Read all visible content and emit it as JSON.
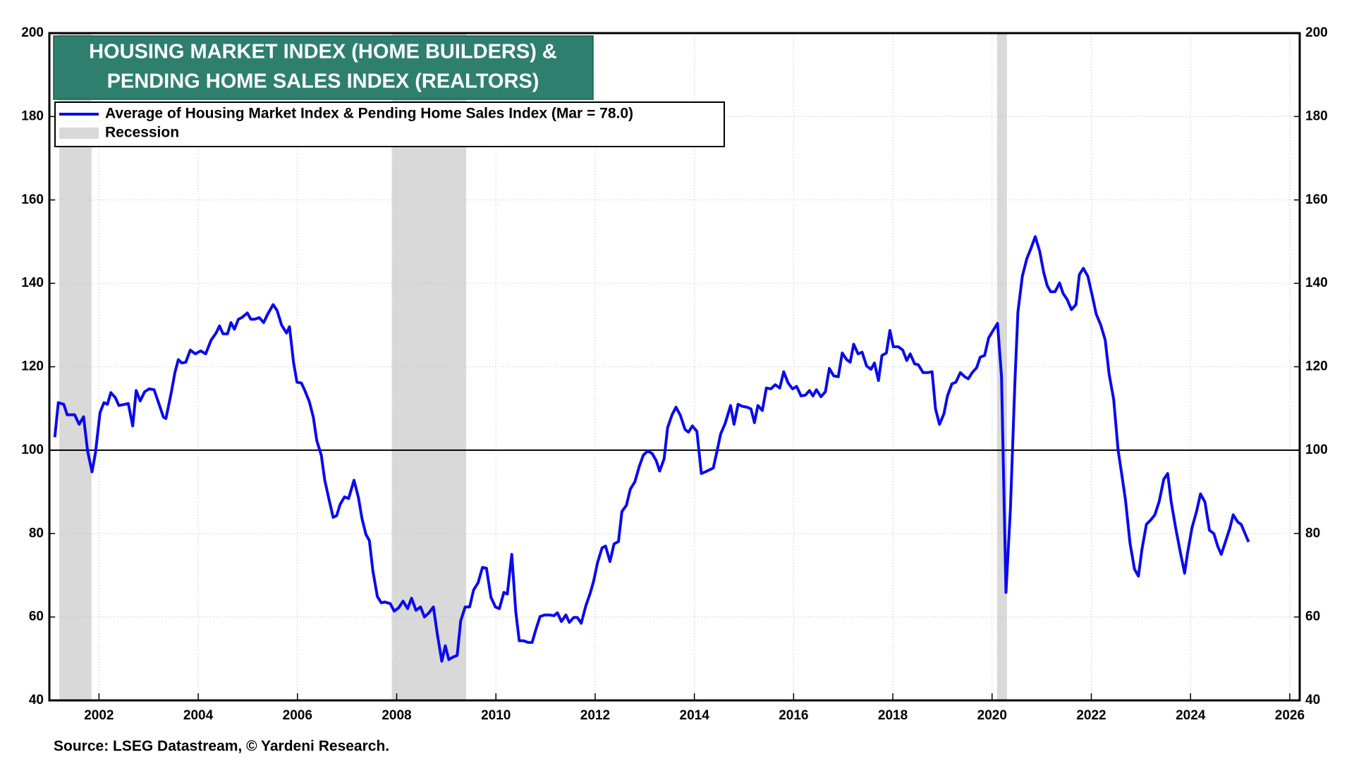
{
  "chart_data": {
    "type": "line",
    "title": [
      "HOUSING MARKET INDEX (HOME BUILDERS) &",
      "PENDING HOME SALES INDEX (REALTORS)"
    ],
    "source": "Source: LSEG Datastream, © Yardeni Research.",
    "xlim": [
      2001,
      2026.2
    ],
    "xticks": [
      2002,
      2004,
      2006,
      2008,
      2010,
      2012,
      2014,
      2016,
      2018,
      2020,
      2022,
      2024,
      2026
    ],
    "ylim": [
      40,
      200
    ],
    "yticks": [
      40,
      60,
      80,
      100,
      120,
      140,
      160,
      180,
      200
    ],
    "grid": true,
    "reference_line": 100,
    "recession_label": "Recession",
    "recession_color": "#d9d9d9",
    "recessions": [
      [
        2001.2,
        2001.85
      ],
      [
        2007.9,
        2009.4
      ],
      [
        2020.1,
        2020.3
      ]
    ],
    "x": [
      2001.11,
      2001.18,
      2001.29,
      2001.36,
      2001.51,
      2001.6,
      2001.69,
      2001.77,
      2001.86,
      2001.93,
      2002.02,
      2002.1,
      2002.17,
      2002.24,
      2002.33,
      2002.4,
      2002.52,
      2002.59,
      2002.68,
      2002.75,
      2002.83,
      2002.92,
      2003.01,
      2003.11,
      2003.22,
      2003.3,
      2003.35,
      2003.46,
      2003.53,
      2003.6,
      2003.67,
      2003.75,
      2003.84,
      2003.94,
      2004.05,
      2004.15,
      2004.26,
      2004.36,
      2004.43,
      2004.5,
      2004.59,
      2004.66,
      2004.73,
      2004.81,
      2004.88,
      2004.99,
      2005.06,
      2005.14,
      2005.23,
      2005.32,
      2005.4,
      2005.51,
      2005.59,
      2005.68,
      2005.78,
      2005.84,
      2005.92,
      2005.99,
      2006.08,
      2006.15,
      2006.24,
      2006.32,
      2006.39,
      2006.48,
      2006.55,
      2006.64,
      2006.72,
      2006.79,
      2006.86,
      2006.95,
      2007.03,
      2007.14,
      2007.23,
      2007.3,
      2007.38,
      2007.45,
      2007.52,
      2007.61,
      2007.69,
      2007.76,
      2007.87,
      2007.95,
      2008.04,
      2008.13,
      2008.22,
      2008.3,
      2008.39,
      2008.48,
      2008.56,
      2008.65,
      2008.74,
      2008.82,
      2008.91,
      2008.98,
      2009.05,
      2009.14,
      2009.22,
      2009.29,
      2009.38,
      2009.47,
      2009.55,
      2009.64,
      2009.73,
      2009.81,
      2009.9,
      2009.99,
      2010.07,
      2010.16,
      2010.23,
      2010.32,
      2010.4,
      2010.47,
      2010.56,
      2010.65,
      2010.73,
      2010.8,
      2010.89,
      2010.98,
      2011.08,
      2011.17,
      2011.24,
      2011.32,
      2011.41,
      2011.48,
      2011.57,
      2011.64,
      2011.72,
      2011.81,
      2011.9,
      2011.97,
      2012.05,
      2012.14,
      2012.21,
      2012.3,
      2012.38,
      2012.47,
      2012.54,
      2012.63,
      2012.71,
      2012.8,
      2012.89,
      2012.97,
      2013.06,
      2013.15,
      2013.23,
      2013.3,
      2013.39,
      2013.46,
      2013.55,
      2013.63,
      2013.72,
      2013.81,
      2013.88,
      2013.96,
      2014.05,
      2014.14,
      2014.22,
      2014.29,
      2014.38,
      2014.45,
      2014.53,
      2014.62,
      2014.73,
      2014.8,
      2014.88,
      2014.97,
      2015.06,
      2015.14,
      2015.21,
      2015.28,
      2015.37,
      2015.45,
      2015.54,
      2015.63,
      2015.72,
      2015.8,
      2015.89,
      2015.98,
      2016.06,
      2016.15,
      2016.24,
      2016.32,
      2016.39,
      2016.46,
      2016.55,
      2016.64,
      2016.72,
      2016.81,
      2016.9,
      2016.98,
      2017.07,
      2017.14,
      2017.21,
      2017.3,
      2017.38,
      2017.47,
      2017.56,
      2017.63,
      2017.71,
      2017.78,
      2017.87,
      2017.94,
      2018.01,
      2018.11,
      2018.2,
      2018.28,
      2018.35,
      2018.44,
      2018.51,
      2018.61,
      2018.7,
      2018.79,
      2018.86,
      2018.94,
      2019.03,
      2019.1,
      2019.19,
      2019.27,
      2019.36,
      2019.45,
      2019.52,
      2019.6,
      2019.69,
      2019.76,
      2019.85,
      2019.93,
      2020.02,
      2020.11,
      2020.19,
      2020.28,
      2020.37,
      2020.46,
      2020.52,
      2020.61,
      2020.7,
      2020.78,
      2020.87,
      2020.96,
      2021.04,
      2021.11,
      2021.18,
      2021.27,
      2021.36,
      2021.43,
      2021.51,
      2021.6,
      2021.69,
      2021.76,
      2021.84,
      2021.93,
      2022.02,
      2022.1,
      2022.19,
      2022.28,
      2022.36,
      2022.45,
      2022.54,
      2022.61,
      2022.69,
      2022.78,
      2022.87,
      2022.95,
      2023.02,
      2023.11,
      2023.2,
      2023.28,
      2023.37,
      2023.46,
      2023.54,
      2023.61,
      2023.7,
      2023.79,
      2023.88,
      2023.94,
      2024.03,
      2024.12,
      2024.2,
      2024.29,
      2024.38,
      2024.47,
      2024.55,
      2024.62,
      2024.71,
      2024.79,
      2024.86,
      2024.95,
      2025.02,
      2025.17
    ],
    "series": [
      {
        "name": "Average of Housing Market Index & Pending Home Sales Index (Mar = 78.0)",
        "color": "#0a0aee",
        "values": [
          103.1,
          111.4,
          111,
          108.5,
          108.5,
          106.2,
          108,
          99.8,
          94.8,
          99.4,
          109,
          111.4,
          111,
          113.8,
          112.6,
          110.7,
          111,
          111.2,
          105.8,
          114.3,
          111.8,
          114,
          114.7,
          114.5,
          110.7,
          107.9,
          107.6,
          114,
          118.6,
          121.7,
          120.9,
          121.1,
          124,
          123.1,
          123.8,
          123.1,
          126.4,
          128.1,
          129.8,
          127.9,
          127.9,
          130.6,
          129,
          131.4,
          131.8,
          132.9,
          131.4,
          131.4,
          131.8,
          130.6,
          132.6,
          134.9,
          133.5,
          130,
          128.1,
          129.6,
          121.1,
          116.3,
          116.1,
          114.3,
          111.6,
          107.9,
          102.3,
          98.8,
          92.8,
          88,
          83.9,
          84.3,
          87,
          88.8,
          88.4,
          92.8,
          88.6,
          83.7,
          79.8,
          78.3,
          71.1,
          64.9,
          63.4,
          63.6,
          63.2,
          61.4,
          62.2,
          63.8,
          62,
          64.5,
          61.6,
          62.4,
          60,
          61,
          62.4,
          55.8,
          49.4,
          53.1,
          49.8,
          50.4,
          50.8,
          59.1,
          62.4,
          62.4,
          66.5,
          68.2,
          71.9,
          71.7,
          64.7,
          62.4,
          62,
          65.9,
          65.5,
          75,
          61.2,
          54.3,
          54.3,
          53.9,
          53.9,
          56.8,
          60.1,
          60.5,
          60.5,
          60.3,
          61,
          58.9,
          60.5,
          58.7,
          59.9,
          59.9,
          58.5,
          62.6,
          65.7,
          68.6,
          73.1,
          76.6,
          77,
          73.3,
          77.5,
          78.1,
          85.3,
          86.8,
          90.7,
          92.4,
          96.1,
          98.8,
          99.8,
          99.2,
          97.5,
          95,
          97.9,
          105.4,
          108.5,
          110.3,
          108.3,
          105,
          104.3,
          105.8,
          104.5,
          94.4,
          94.8,
          95.2,
          95.7,
          99.4,
          103.9,
          106.4,
          110.7,
          106.2,
          111,
          110.5,
          110.3,
          109.9,
          106.6,
          110.7,
          109.5,
          114.9,
          114.7,
          115.7,
          114.9,
          118.8,
          116.1,
          114.7,
          115.3,
          113,
          113.2,
          114.3,
          113,
          114.5,
          112.8,
          114,
          119.6,
          117.8,
          117.6,
          123.3,
          121.7,
          121.1,
          125.4,
          123.1,
          123.5,
          120.2,
          119.4,
          120.9,
          116.7,
          122.7,
          123.3,
          128.7,
          124.8,
          124.8,
          124,
          121.5,
          123.1,
          120.7,
          120.5,
          118.6,
          118.6,
          118.8,
          109.9,
          106.2,
          108.7,
          113,
          115.9,
          116.3,
          118.6,
          117.6,
          117.1,
          118.6,
          119.8,
          122.3,
          122.7,
          126.9,
          128.7,
          130.4,
          117.6,
          65.9,
          85.9,
          116.5,
          133.1,
          141.7,
          145.9,
          148.3,
          151.2,
          147.7,
          142.6,
          139.5,
          138,
          138,
          140.1,
          137.6,
          136.2,
          133.7,
          134.9,
          142.1,
          143.6,
          141.7,
          137,
          132.6,
          130,
          126.4,
          118.2,
          112.2,
          100,
          94.5,
          88,
          77.7,
          71.5,
          69.8,
          76.2,
          82.2,
          83.3,
          84.5,
          87.8,
          93,
          94.4,
          87.6,
          81.4,
          75.8,
          70.5,
          75.4,
          81.4,
          85.3,
          89.5,
          87.6,
          80.8,
          80,
          76.9,
          75,
          78.3,
          81.2,
          84.5,
          82.8,
          82.2,
          78
        ]
      }
    ]
  }
}
